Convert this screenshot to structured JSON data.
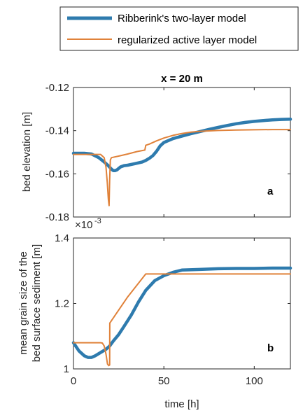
{
  "colors": {
    "model1": "#2E7BAE",
    "model2": "#E0823A"
  },
  "legend": {
    "items": [
      {
        "label": "Ribberink's two-layer model",
        "color": "#2E7BAE"
      },
      {
        "label": "regularized active layer model",
        "color": "#E0823A"
      }
    ]
  },
  "chart_data": [
    {
      "type": "line",
      "title": "x = 20 m",
      "panel_label": "a",
      "xlabel": "",
      "ylabel": "bed elevation [m]",
      "xlim": [
        0,
        120
      ],
      "ylim": [
        -0.18,
        -0.12
      ],
      "yticks": [
        -0.18,
        -0.16,
        -0.14,
        -0.12
      ],
      "ytick_labels": [
        "-0.18",
        "-0.16",
        "-0.14",
        "-0.12"
      ],
      "xticks": [
        0,
        50,
        100
      ],
      "series": [
        {
          "name": "Ribberink's two-layer model",
          "x": [
            0,
            6,
            10,
            14,
            17,
            19,
            21,
            22,
            23,
            24,
            25,
            26,
            28,
            30,
            34,
            38,
            40,
            42,
            44,
            46,
            48,
            50,
            55,
            60,
            65,
            70,
            75,
            80,
            85,
            90,
            95,
            100,
            105,
            110,
            115,
            120
          ],
          "y": [
            -0.1505,
            -0.1505,
            -0.1508,
            -0.1525,
            -0.1545,
            -0.156,
            -0.1578,
            -0.1585,
            -0.1585,
            -0.1582,
            -0.1575,
            -0.1568,
            -0.1562,
            -0.156,
            -0.1553,
            -0.1545,
            -0.1538,
            -0.1528,
            -0.1515,
            -0.1495,
            -0.147,
            -0.1455,
            -0.1437,
            -0.1425,
            -0.1414,
            -0.1404,
            -0.1394,
            -0.1385,
            -0.1376,
            -0.1368,
            -0.1362,
            -0.1357,
            -0.1353,
            -0.135,
            -0.1348,
            -0.1347
          ]
        },
        {
          "name": "regularized active layer model",
          "x": [
            0,
            5,
            10,
            15,
            17,
            18,
            18.7,
            19.3,
            19.7,
            20.0,
            20.4,
            21,
            25,
            30,
            35,
            39.5,
            40,
            42,
            46,
            50,
            55,
            60,
            65,
            70,
            80,
            90,
            100,
            110,
            120
          ],
          "y": [
            -0.151,
            -0.151,
            -0.151,
            -0.151,
            -0.1525,
            -0.157,
            -0.164,
            -0.172,
            -0.1747,
            -0.163,
            -0.1535,
            -0.1525,
            -0.1518,
            -0.1508,
            -0.1497,
            -0.149,
            -0.1468,
            -0.1462,
            -0.1447,
            -0.1434,
            -0.1422,
            -0.1413,
            -0.1407,
            -0.1403,
            -0.1399,
            -0.1397,
            -0.1396,
            -0.1395,
            -0.1395
          ]
        }
      ]
    },
    {
      "type": "line",
      "title": "",
      "panel_label": "b",
      "xlabel": "time [h]",
      "ylabel_lines": [
        "mean grain size of the",
        "bed surface sediment [m]"
      ],
      "scale_exponent": "×10",
      "scale_power": "-3",
      "xlim": [
        0,
        120
      ],
      "ylim": [
        1.0,
        1.4
      ],
      "yticks": [
        1.0,
        1.2,
        1.4
      ],
      "ytick_labels": [
        "1",
        "1.2",
        "1.4"
      ],
      "xticks": [
        0,
        50,
        100
      ],
      "xtick_labels": [
        "0",
        "50",
        "100"
      ],
      "series": [
        {
          "name": "Ribberink's two-layer model",
          "x": [
            0,
            3,
            6,
            8,
            10,
            12,
            15,
            18,
            20,
            22,
            25,
            28,
            32,
            36,
            40,
            45,
            50,
            55,
            60,
            70,
            80,
            90,
            100,
            110,
            120
          ],
          "y": [
            1.08,
            1.055,
            1.04,
            1.035,
            1.035,
            1.04,
            1.05,
            1.06,
            1.07,
            1.085,
            1.105,
            1.13,
            1.165,
            1.205,
            1.24,
            1.27,
            1.285,
            1.295,
            1.302,
            1.304,
            1.306,
            1.307,
            1.307,
            1.308,
            1.308
          ]
        },
        {
          "name": "regularized active layer model",
          "x": [
            0,
            5,
            10,
            15,
            16,
            17,
            18,
            18.8,
            19.5,
            20.0,
            20.1,
            25,
            30,
            35,
            40,
            50,
            60,
            80,
            100,
            120
          ],
          "y": [
            1.08,
            1.08,
            1.08,
            1.08,
            1.079,
            1.07,
            1.045,
            1.015,
            1.01,
            1.012,
            1.14,
            1.18,
            1.22,
            1.255,
            1.29,
            1.29,
            1.29,
            1.29,
            1.29,
            1.29
          ]
        }
      ]
    }
  ]
}
